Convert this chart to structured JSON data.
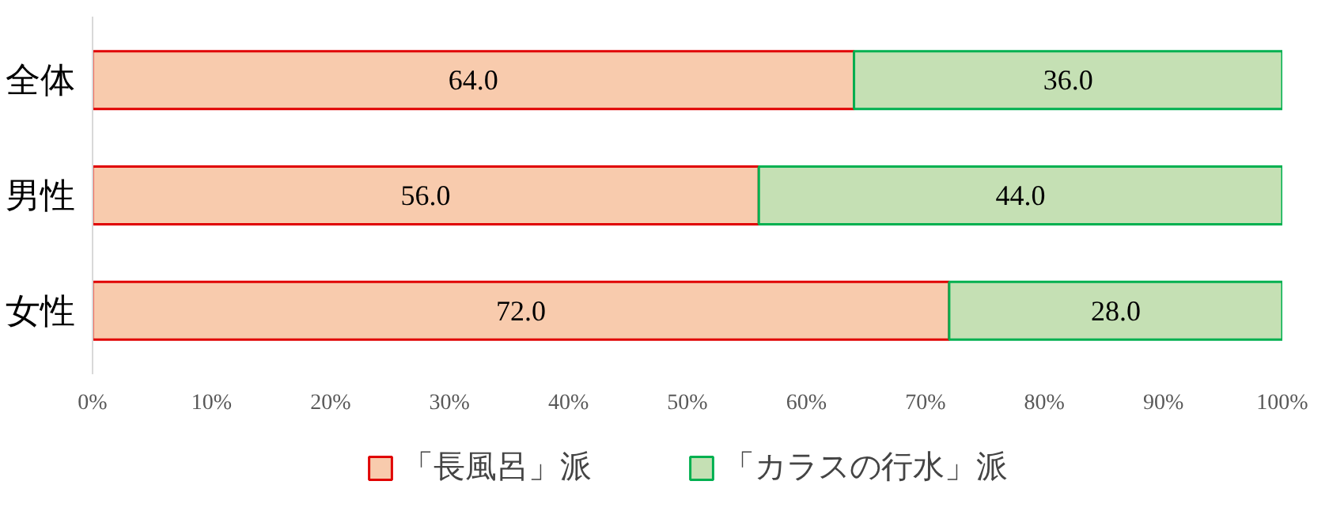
{
  "chart_data": {
    "type": "bar",
    "orientation": "horizontal",
    "stacked": true,
    "categories": [
      "全体",
      "男性",
      "女性"
    ],
    "series": [
      {
        "name": "「長風呂」派",
        "color": "#f8cbad",
        "values": [
          64.0,
          56.0,
          72.0
        ],
        "value_labels": [
          "64.0",
          "56.0",
          "72.0"
        ]
      },
      {
        "name": "「カラスの行水」派",
        "color": "#c5e0b4",
        "values": [
          36.0,
          44.0,
          28.0
        ],
        "value_labels": [
          "36.0",
          "44.0",
          "28.0"
        ]
      }
    ],
    "xlim": [
      0,
      100
    ],
    "xticks": [
      {
        "value": 0,
        "label": "0%"
      },
      {
        "value": 10,
        "label": "10%"
      },
      {
        "value": 20,
        "label": "20%"
      },
      {
        "value": 30,
        "label": "30%"
      },
      {
        "value": 40,
        "label": "40%"
      },
      {
        "value": 50,
        "label": "50%"
      },
      {
        "value": 60,
        "label": "60%"
      },
      {
        "value": 70,
        "label": "70%"
      },
      {
        "value": 80,
        "label": "80%"
      },
      {
        "value": 90,
        "label": "90%"
      },
      {
        "value": 100,
        "label": "100%"
      }
    ],
    "legend": "bottom"
  }
}
